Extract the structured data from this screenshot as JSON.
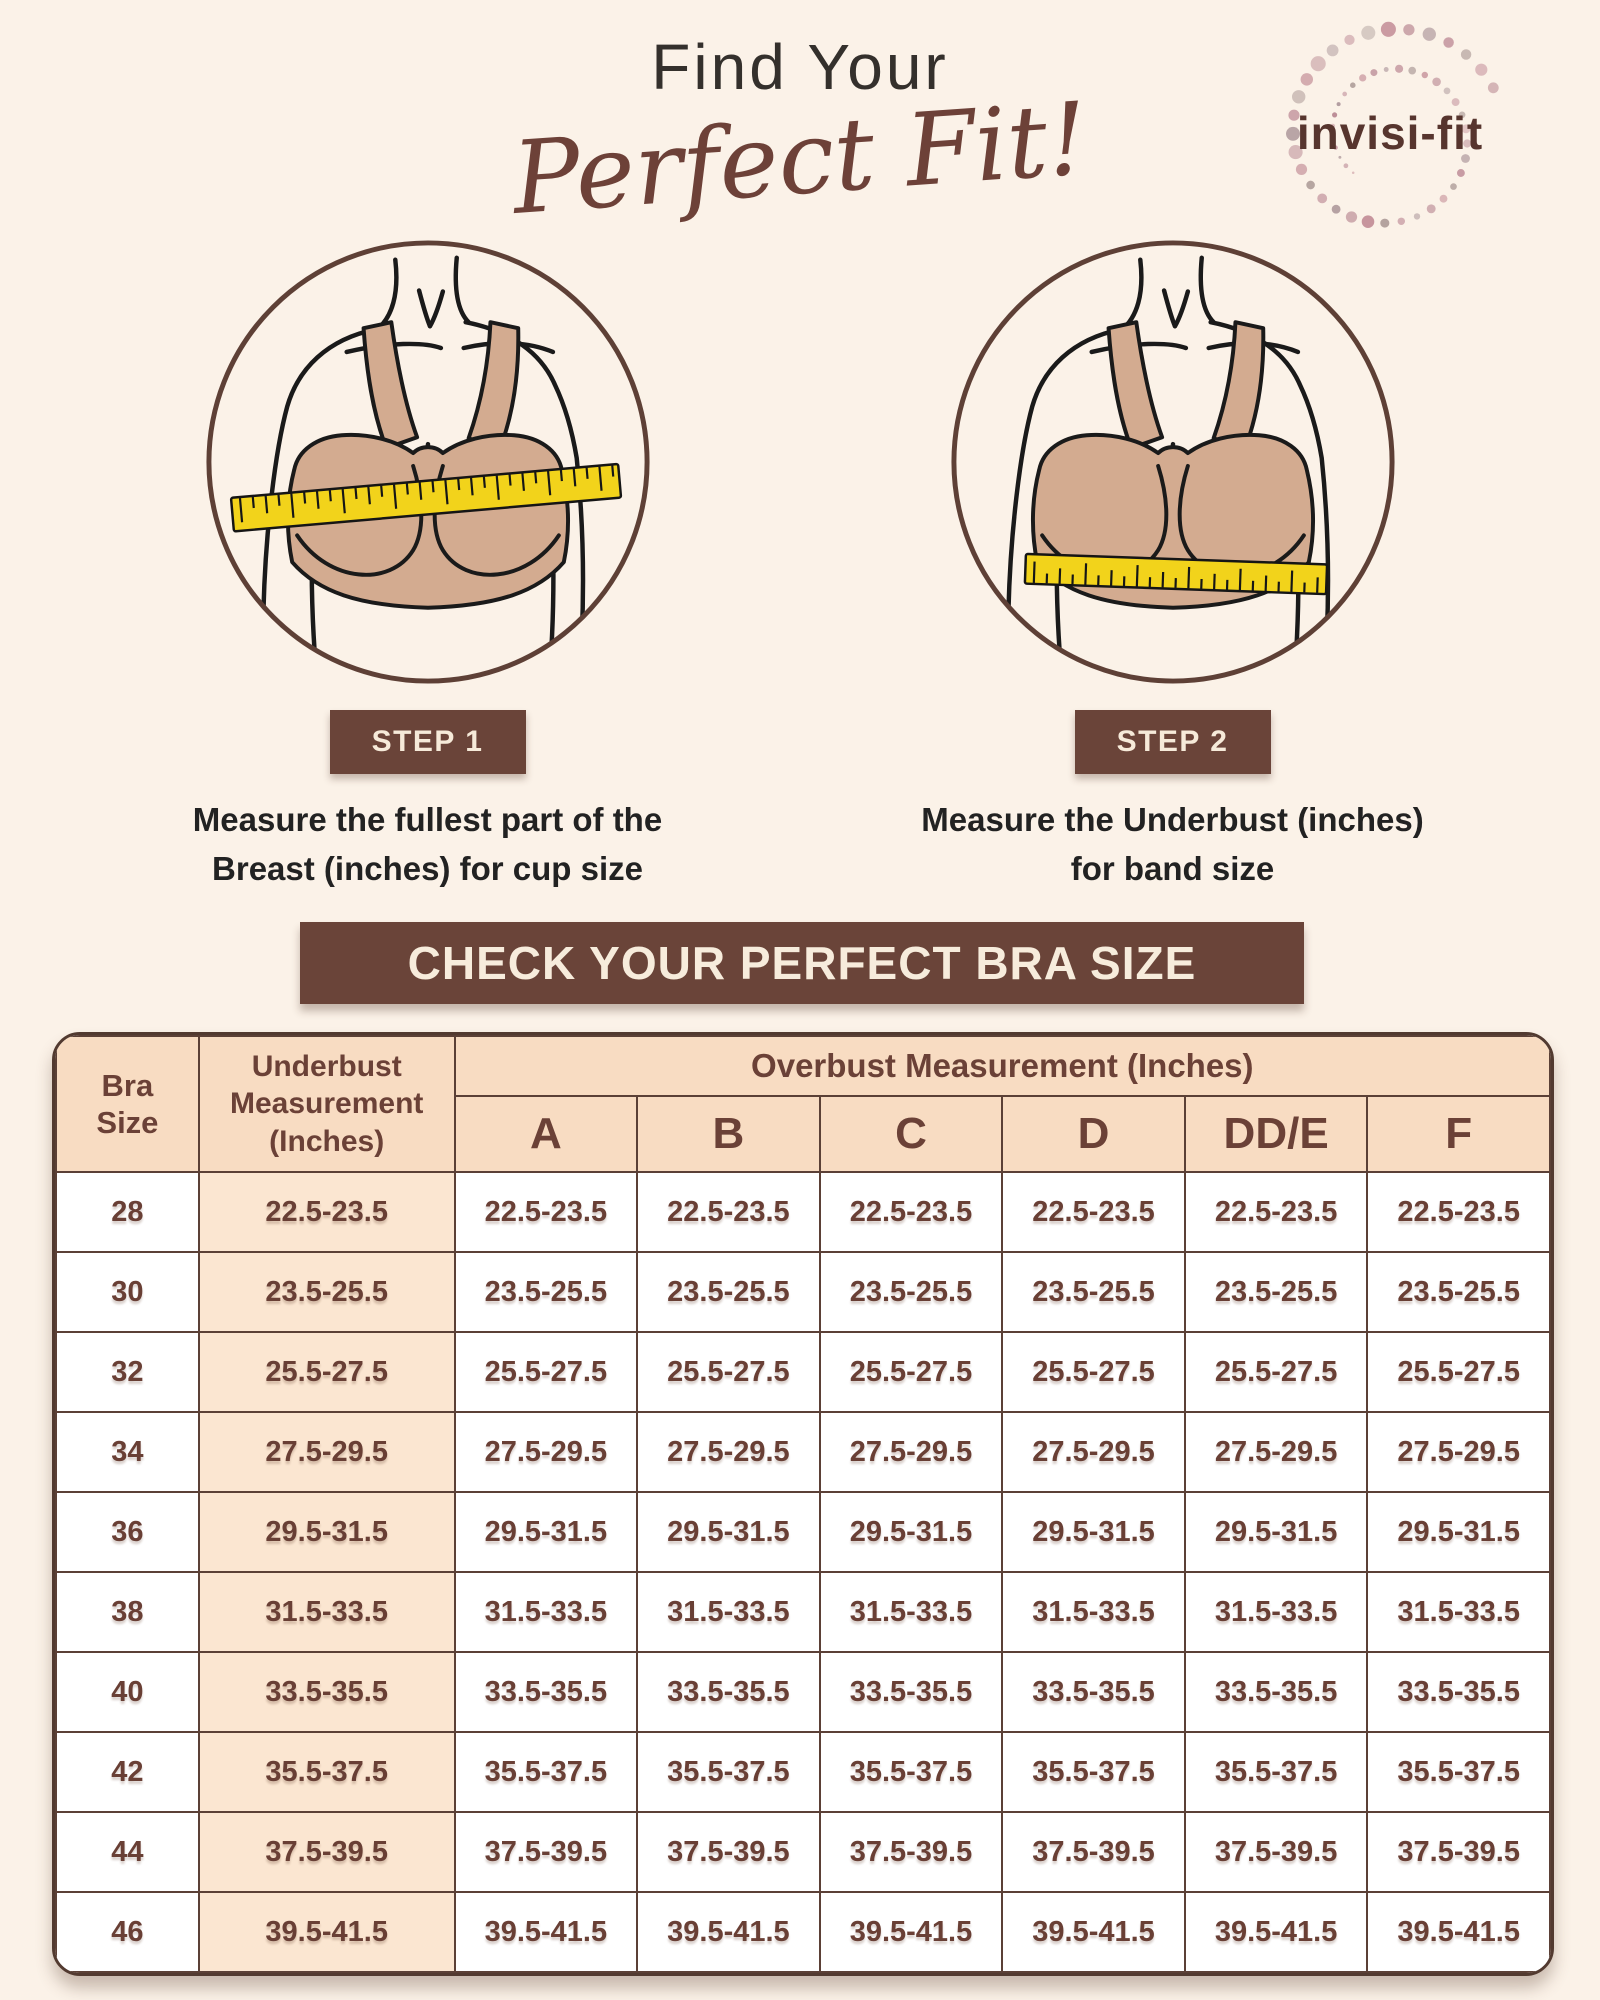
{
  "header": {
    "title": "Find Your",
    "script_title": "Perfect Fit!",
    "logo": {
      "text": "invisi-fit",
      "decoration": "dot-swirl"
    }
  },
  "steps": [
    {
      "badge": "STEP 1",
      "description_lines": [
        "Measure the fullest part of the",
        "Breast (inches) for cup size"
      ],
      "illustration": "torso-measuring-tape-overbust"
    },
    {
      "badge": "STEP 2",
      "description_lines": [
        "Measure the Underbust (inches)",
        "for band size"
      ],
      "illustration": "torso-measuring-tape-underbust"
    }
  ],
  "banner": {
    "label": "CHECK YOUR PERFECT BRA SIZE"
  },
  "size_table": {
    "corner_header": "Bra Size",
    "underbust_header": "Underbust Measurement (Inches)",
    "overbust_header": "Overbust Measurement (Inches)",
    "cup_columns": [
      "A",
      "B",
      "C",
      "D",
      "DD/E",
      "F"
    ],
    "rows": [
      {
        "size": "28",
        "underbust": "22.5-23.5",
        "cells": [
          "22.5-23.5",
          "22.5-23.5",
          "22.5-23.5",
          "22.5-23.5",
          "22.5-23.5",
          "22.5-23.5"
        ]
      },
      {
        "size": "30",
        "underbust": "23.5-25.5",
        "cells": [
          "23.5-25.5",
          "23.5-25.5",
          "23.5-25.5",
          "23.5-25.5",
          "23.5-25.5",
          "23.5-25.5"
        ]
      },
      {
        "size": "32",
        "underbust": "25.5-27.5",
        "cells": [
          "25.5-27.5",
          "25.5-27.5",
          "25.5-27.5",
          "25.5-27.5",
          "25.5-27.5",
          "25.5-27.5"
        ]
      },
      {
        "size": "34",
        "underbust": "27.5-29.5",
        "cells": [
          "27.5-29.5",
          "27.5-29.5",
          "27.5-29.5",
          "27.5-29.5",
          "27.5-29.5",
          "27.5-29.5"
        ]
      },
      {
        "size": "36",
        "underbust": "29.5-31.5",
        "cells": [
          "29.5-31.5",
          "29.5-31.5",
          "29.5-31.5",
          "29.5-31.5",
          "29.5-31.5",
          "29.5-31.5"
        ]
      },
      {
        "size": "38",
        "underbust": "31.5-33.5",
        "cells": [
          "31.5-33.5",
          "31.5-33.5",
          "31.5-33.5",
          "31.5-33.5",
          "31.5-33.5",
          "31.5-33.5"
        ]
      },
      {
        "size": "40",
        "underbust": "33.5-35.5",
        "cells": [
          "33.5-35.5",
          "33.5-35.5",
          "33.5-35.5",
          "33.5-35.5",
          "33.5-35.5",
          "33.5-35.5"
        ]
      },
      {
        "size": "42",
        "underbust": "35.5-37.5",
        "cells": [
          "35.5-37.5",
          "35.5-37.5",
          "35.5-37.5",
          "35.5-37.5",
          "35.5-37.5",
          "35.5-37.5"
        ]
      },
      {
        "size": "44",
        "underbust": "37.5-39.5",
        "cells": [
          "37.5-39.5",
          "37.5-39.5",
          "37.5-39.5",
          "37.5-39.5",
          "37.5-39.5",
          "37.5-39.5"
        ]
      },
      {
        "size": "46",
        "underbust": "39.5-41.5",
        "cells": [
          "39.5-41.5",
          "39.5-41.5",
          "39.5-41.5",
          "39.5-41.5",
          "39.5-41.5",
          "39.5-41.5"
        ]
      }
    ]
  },
  "colors": {
    "background": "#fbf2e8",
    "accent_brown": "#6a4439",
    "border_brown": "#5b4036",
    "header_peach": "#f8dcc2",
    "underbust_cell_peach": "#fbe6d1",
    "table_text_brown": "#6b4137",
    "cream_text": "#f6ead9",
    "tape_yellow": "#f2d31b",
    "bra_skin": "#d3ab90",
    "logo_dot_mauve": "#c5919a",
    "script_maroon": "#6d4138"
  }
}
